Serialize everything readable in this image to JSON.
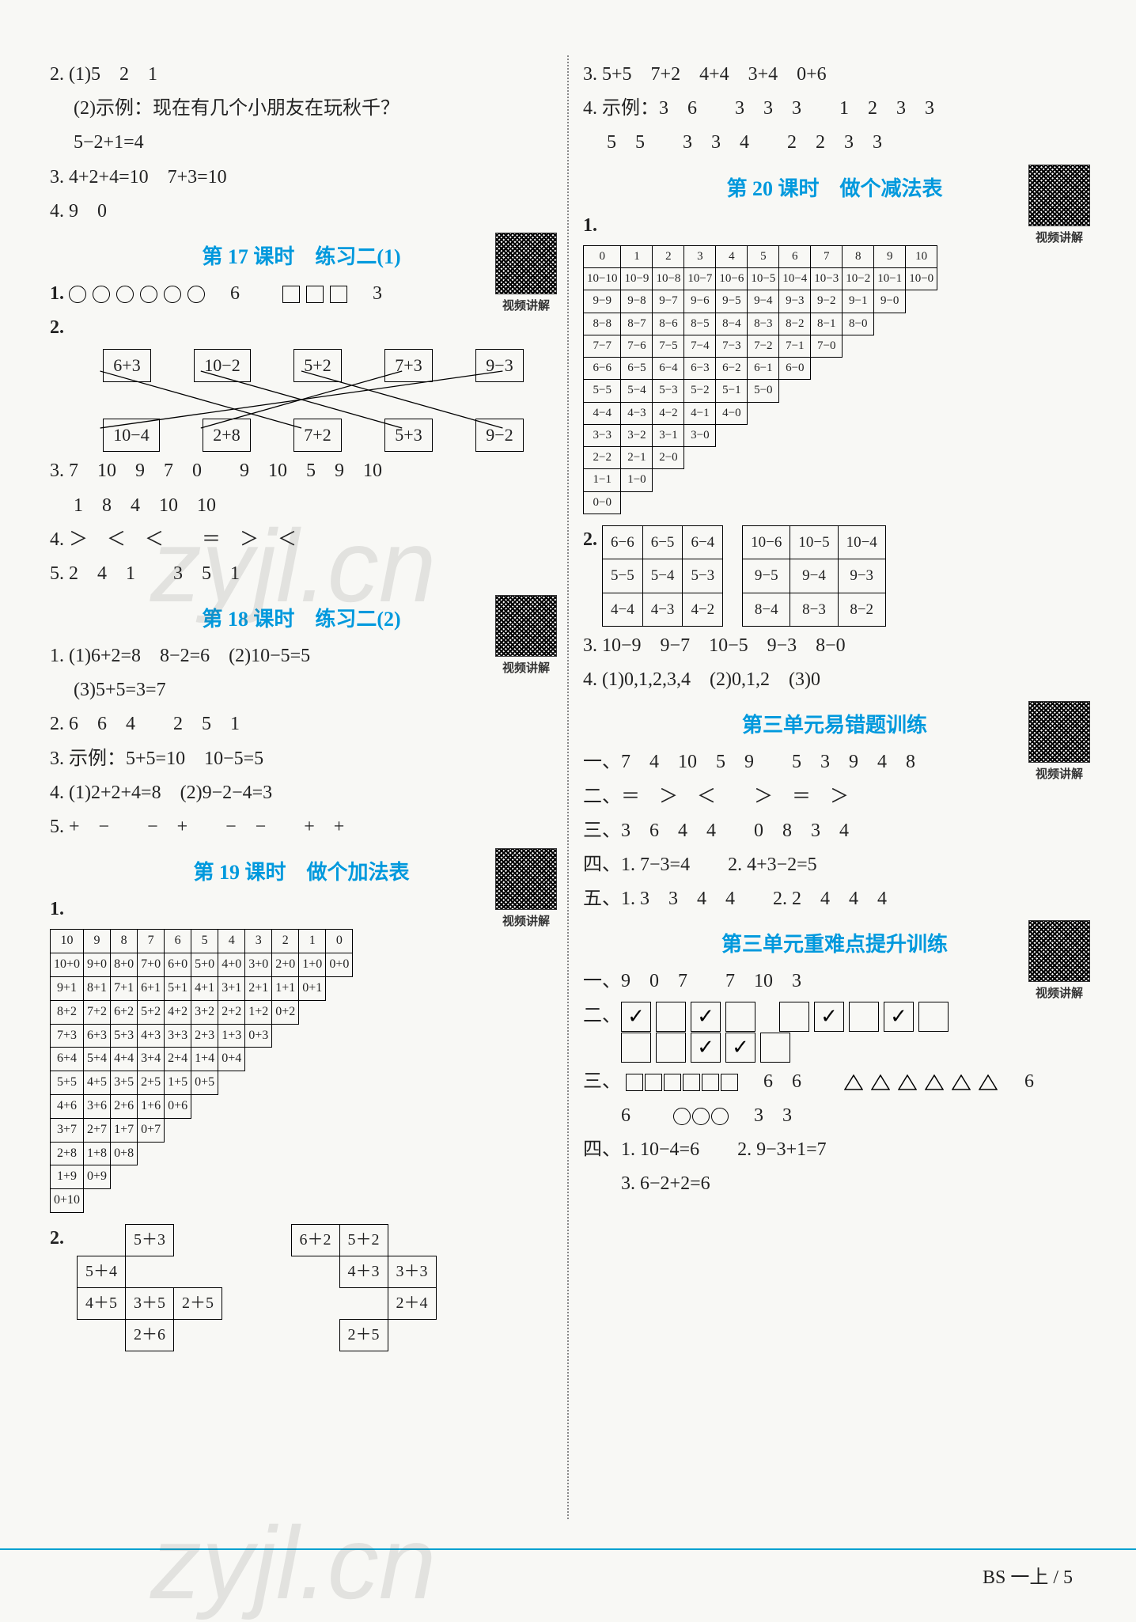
{
  "left": {
    "l1": "2. (1)5　2　1",
    "l2": "　 (2)示例：现在有几个小朋友在玩秋千？",
    "l3": "　 5−2+1=4",
    "l4": "3. 4+2+4=10　7+3=10",
    "l5": "4. 9　0",
    "h17": "第 17 课时　练习二(1)",
    "q17_1_a": "6",
    "q17_1_b": "3",
    "match_top": [
      "6+3",
      "10−2",
      "5+2",
      "7+3",
      "9−3"
    ],
    "match_bot": [
      "10−4",
      "2+8",
      "7+2",
      "5+3",
      "9−2"
    ],
    "q17_3a": "3. 7　10　9　7　0　　9　10　5　9　10",
    "q17_3b": "　 1　8　4　10　10",
    "q17_4": "4. ＞　＜　＜　　＝　＞　＜",
    "q17_5": "5. 2　4　1　　3　5　1",
    "h18": "第 18 课时　练习二(2)",
    "q18_1a": "1. (1)6+2=8　8−2=6　(2)10−5=5",
    "q18_1b": "　 (3)5+5=3=7",
    "q18_2": "2. 6　6　4　　2　5　1",
    "q18_3": "3. 示例：5+5=10　10−5=5",
    "q18_4": "4. (1)2+2+4=8　(2)9−2−4=3",
    "q18_5": "5. +　−　　−　+　　−　−　　+　+",
    "h19": "第 19 课时　做个加法表",
    "add_table": [
      [
        "10",
        "9",
        "8",
        "7",
        "6",
        "5",
        "4",
        "3",
        "2",
        "1",
        "0"
      ],
      [
        "10+0",
        "9+0",
        "8+0",
        "7+0",
        "6+0",
        "5+0",
        "4+0",
        "3+0",
        "2+0",
        "1+0",
        "0+0"
      ],
      [
        "9+1",
        "8+1",
        "7+1",
        "6+1",
        "5+1",
        "4+1",
        "3+1",
        "2+1",
        "1+1",
        "0+1"
      ],
      [
        "8+2",
        "7+2",
        "6+2",
        "5+2",
        "4+2",
        "3+2",
        "2+2",
        "1+2",
        "0+2"
      ],
      [
        "7+3",
        "6+3",
        "5+3",
        "4+3",
        "3+3",
        "2+3",
        "1+3",
        "0+3"
      ],
      [
        "6+4",
        "5+4",
        "4+4",
        "3+4",
        "2+4",
        "1+4",
        "0+4"
      ],
      [
        "5+5",
        "4+5",
        "3+5",
        "2+5",
        "1+5",
        "0+5"
      ],
      [
        "4+6",
        "3+6",
        "2+6",
        "1+6",
        "0+6"
      ],
      [
        "3+7",
        "2+7",
        "1+7",
        "0+7"
      ],
      [
        "2+8",
        "1+8",
        "0+8"
      ],
      [
        "1+9",
        "0+9"
      ],
      [
        "0+10"
      ]
    ],
    "q19_2": {
      "left": [
        [
          "",
          "5＋3",
          ""
        ],
        [
          "5＋4",
          "",
          "",
          ""
        ],
        [
          "4＋5",
          "3＋5",
          "2＋5"
        ],
        [
          "",
          "2＋6",
          ""
        ]
      ],
      "right": [
        [
          "6＋2",
          "5＋2",
          ""
        ],
        [
          "",
          "4＋3",
          "3＋3"
        ],
        [
          "",
          "",
          "2＋4"
        ],
        [
          "",
          "2＋5",
          ""
        ]
      ]
    }
  },
  "right": {
    "r1": "3. 5+5　7+2　4+4　3+4　0+6",
    "r2a": "4. 示例：3　6　　3　3　3　　1　2　3　3",
    "r2b": "　 5　5　　3　3　4　　2　2　3　3",
    "h20": "第 20 课时　做个减法表",
    "sub_table": [
      [
        "0",
        "1",
        "2",
        "3",
        "4",
        "5",
        "6",
        "7",
        "8",
        "9",
        "10"
      ],
      [
        "10−10",
        "10−9",
        "10−8",
        "10−7",
        "10−6",
        "10−5",
        "10−4",
        "10−3",
        "10−2",
        "10−1",
        "10−0"
      ],
      [
        "9−9",
        "9−8",
        "9−7",
        "9−6",
        "9−5",
        "9−4",
        "9−3",
        "9−2",
        "9−1",
        "9−0"
      ],
      [
        "8−8",
        "8−7",
        "8−6",
        "8−5",
        "8−4",
        "8−3",
        "8−2",
        "8−1",
        "8−0"
      ],
      [
        "7−7",
        "7−6",
        "7−5",
        "7−4",
        "7−3",
        "7−2",
        "7−1",
        "7−0"
      ],
      [
        "6−6",
        "6−5",
        "6−4",
        "6−3",
        "6−2",
        "6−1",
        "6−0"
      ],
      [
        "5−5",
        "5−4",
        "5−3",
        "5−2",
        "5−1",
        "5−0"
      ],
      [
        "4−4",
        "4−3",
        "4−2",
        "4−1",
        "4−0"
      ],
      [
        "3−3",
        "3−2",
        "3−1",
        "3−0"
      ],
      [
        "2−2",
        "2−1",
        "2−0"
      ],
      [
        "1−1",
        "1−0"
      ],
      [
        "0−0"
      ]
    ],
    "q20_2_l": [
      [
        "6−6",
        "6−5",
        "6−4"
      ],
      [
        "5−5",
        "5−4",
        "5−3"
      ],
      [
        "4−4",
        "4−3",
        "4−2"
      ]
    ],
    "q20_2_r": [
      [
        "10−6",
        "10−5",
        "10−4"
      ],
      [
        "9−5",
        "9−4",
        "9−3"
      ],
      [
        "8−4",
        "8−3",
        "8−2"
      ]
    ],
    "q20_3": "3. 10−9　9−7　10−5　9−3　8−0",
    "q20_4": "4. (1)0,1,2,3,4　(2)0,1,2　(3)0",
    "hEz": "第三单元易错题训练",
    "ez1": "一、7　4　10　5　9　　5　3　9　4　8",
    "ez2": "二、＝　＞　＜　　＞　＝　＞",
    "ez3": "三、3　6　4　4　　0　8　3　4",
    "ez4": "四、1. 7−3=4　　2. 4+3−2=5",
    "ez5": "五、1. 3　3　4　4　　2. 2　4　4　4",
    "hZn": "第三单元重难点提升训练",
    "zn1": "一、9　0　7　　7　10　3",
    "zn2_checks": [
      true,
      false,
      true,
      false,
      false,
      true,
      false,
      true,
      false,
      false,
      false,
      true,
      true,
      false
    ],
    "zn3a": "6　6",
    "zn3b": "6",
    "zn3c": "6",
    "zn3d": "3　3",
    "zn4": "四、1. 10−4=6　　2. 9−3+1=7",
    "zn5": "　　3. 6−2+2=6"
  },
  "footer": "BS 一上 / 5",
  "colors": {
    "heading": "#0099dd",
    "rule": "#00a0d0"
  }
}
